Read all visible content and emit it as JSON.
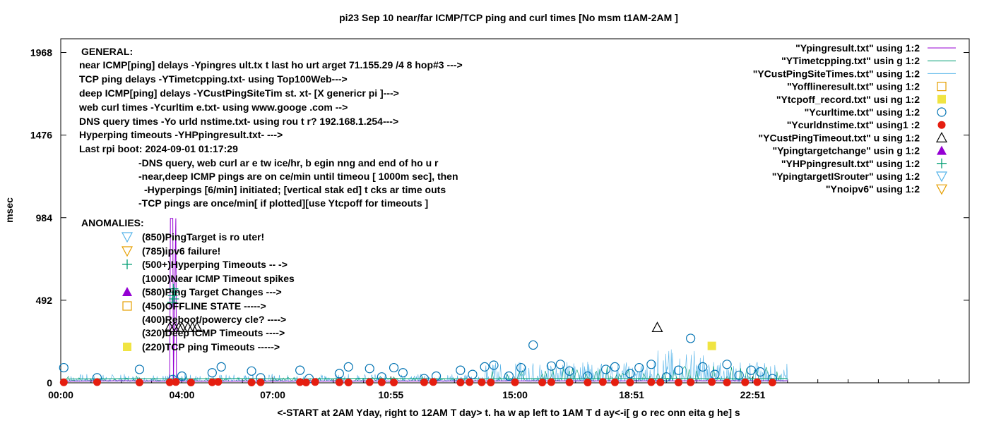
{
  "chart_data": {
    "type": "scatter",
    "title": "pi23 Sep 10  near/far ICMP/TCP ping and curl times [No msm t1AM-2AM ]",
    "xlabel": "<-START at 2AM Yday, right to 12AM T day> t. ha w ap left to 1AM T d ay<-i[ g o rec onn eita g he] s",
    "ylabel": "msec",
    "y_ticks": [
      "1968",
      "1476",
      "984",
      "492",
      "0"
    ],
    "y_tick_values": [
      1968,
      1476,
      984,
      492,
      0
    ],
    "ylim": [
      0,
      2050
    ],
    "x_ticks": [
      "00:00",
      "04:00",
      "07:00",
      "10:55",
      "15:00",
      "18:51",
      "22:51"
    ],
    "xlim_hours": [
      0,
      30
    ],
    "grid": false,
    "legend_position": "top-right",
    "legend": [
      {
        "label": "\"Ypingresult.txt\" using 1:2",
        "symbol": "line",
        "color": "#9400d3"
      },
      {
        "label": "\"YTimetcpping.txt\" usin g 1:2",
        "symbol": "line",
        "color": "#009e73"
      },
      {
        "label": "\"YCustPingSiteTimes.txt\"  using 1:2",
        "symbol": "line",
        "color": "#56b4e9"
      },
      {
        "label": "\"Yofflineresult.txt\" using 1:2",
        "symbol": "open-square",
        "color": "#e69f00"
      },
      {
        "label": "\"Ytcpoff_record.txt\" usi ng 1:2",
        "symbol": "filled-square",
        "color": "#f0e442"
      },
      {
        "label": "\"Ycurltime.txt\" using 1:2",
        "symbol": "open-circle",
        "color": "#0072b2"
      },
      {
        "label": "\"Ycurldnstime.txt\" using1 :2",
        "symbol": "filled-circle",
        "color": "#e51e10"
      },
      {
        "label": "\"YCustPingTimeout.txt\" u sing 1:2",
        "symbol": "open-triangle",
        "color": "#000000"
      },
      {
        "label": "\"Ypingtargetchange\" usin g 1:2",
        "symbol": "filled-triangle",
        "color": "#9400d3"
      },
      {
        "label": "\"YHPpingresult.txt\" using 1:2",
        "symbol": "plus",
        "color": "#009e73"
      },
      {
        "label": "\"YpingtargetISrouter\"  using 1:2",
        "symbol": "open-triangle-down",
        "color": "#56b4e9"
      },
      {
        "label": "\"Ynoipv6\" using 1:2",
        "symbol": "open-triangle-down",
        "color": "#e69f00"
      }
    ],
    "general_notes": [
      "GENERAL:",
      "near ICMP[ping] delays -Ypingres ult.tx t last ho urt arget 71.155.29 /4 8 hop#3 --->",
      "TCP ping delays -YTimetcpping.txt- using Top100Web--->",
      "deep ICMP[ping] delays -YCustPingSiteTim  st. xt- [X genericr pi ]--->",
      "web curl times -Ycurltim e.txt- using www.googe  .com -->",
      "DNS query times -Yo urld nstime.txt- using rou t r? 192.168.1.254--->",
      "Hyperping timeouts -YHPpingresult.txt- --->",
      "Last rpi boot: 2024-09-01 01:17:29",
      "-DNS query, web curl ar e tw ice/hr, b egin nng and end of  ho u r",
      "-near,deep ICMP pings  are on ce/min until timeou [ 1000m sec], then",
      "-Hyperpings [6/min] initiated; [vertical stak  ed] t cks  ar  time outs",
      "-TCP pings are once/min[ if plotted][use Ytcpoff for timeouts ]"
    ],
    "anomalies_title": "ANOMALIES:",
    "anomalies": [
      {
        "symbol": "open-triangle-down",
        "color": "#56b4e9",
        "text": "(850)PingTarget is ro uter!"
      },
      {
        "symbol": "open-triangle-down",
        "color": "#e69f00",
        "text": "(785)ipv6 failure!"
      },
      {
        "symbol": "plus",
        "color": "#009e73",
        "text": "(500+)Hyperping Timeouts -- ->"
      },
      {
        "symbol": "none",
        "color": "#000000",
        "text": "(1000)Near ICMP Timeout spikes"
      },
      {
        "symbol": "filled-triangle",
        "color": "#9400d3",
        "text": "(580)Ping Target Changes --->"
      },
      {
        "symbol": "open-square",
        "color": "#e69f00",
        "text": "(450)OFFLINE STATE ----->"
      },
      {
        "symbol": "none",
        "color": "#000000",
        "text": "(400)Reboot/powercy cle? ---->"
      },
      {
        "symbol": "none",
        "color": "#000000",
        "text": "(320)Deep ICMP Timeouts ---->"
      },
      {
        "symbol": "filled-square",
        "color": "#f0e442",
        "text": "(220)TCP ping Timeouts ----->"
      }
    ],
    "series": [
      {
        "name": "\"Ycurltime.txt\" using 1:2",
        "symbol": "open-circle",
        "color": "#0072b2",
        "x": [
          0.1,
          1.2,
          2.6,
          3.7,
          4.0,
          5.0,
          5.3,
          6.3,
          6.6,
          7.9,
          8.2,
          9.2,
          9.5,
          10.2,
          10.6,
          11.0,
          11.3,
          12.0,
          12.4,
          13.2,
          13.6,
          14.0,
          14.3,
          14.8,
          15.2,
          15.6,
          16.2,
          16.5,
          16.8,
          17.4,
          18.0,
          18.3,
          18.8,
          19.1,
          19.5,
          20.0,
          20.4,
          20.8,
          21.2,
          21.6,
          22.0,
          22.4,
          22.8,
          23.1,
          23.5
        ],
        "y": [
          90,
          30,
          80,
          20,
          40,
          60,
          95,
          70,
          30,
          75,
          25,
          55,
          95,
          85,
          35,
          90,
          60,
          25,
          40,
          75,
          50,
          95,
          105,
          40,
          90,
          225,
          100,
          110,
          70,
          40,
          80,
          95,
          55,
          90,
          110,
          35,
          75,
          265,
          95,
          50,
          110,
          45,
          75,
          65,
          25
        ]
      },
      {
        "name": "\"Ycurldnstime.txt\" using1 :2",
        "symbol": "filled-circle",
        "color": "#e51e10",
        "x": [
          0.1,
          1.2,
          2.6,
          3.6,
          3.8,
          4.3,
          5.0,
          5.2,
          6.3,
          6.6,
          7.9,
          8.1,
          8.4,
          9.2,
          9.5,
          10.2,
          10.6,
          11.0,
          12.0,
          12.3,
          13.2,
          13.5,
          13.9,
          14.2,
          15.0,
          15.9,
          16.2,
          16.8,
          17.4,
          17.9,
          18.3,
          18.8,
          19.5,
          19.8,
          20.4,
          20.8,
          21.5,
          22.0,
          22.6,
          23.0,
          23.5
        ],
        "y": [
          3,
          4,
          2,
          3,
          5,
          2,
          3,
          6,
          2,
          3,
          4,
          2,
          5,
          3,
          2,
          4,
          3,
          2,
          3,
          5,
          2,
          4,
          3,
          2,
          3,
          2,
          4,
          3,
          2,
          5,
          3,
          2,
          4,
          3,
          2,
          3,
          5,
          2,
          3,
          4,
          2
        ]
      },
      {
        "name": "\"YCustPingTimeout.txt\" u sing 1:2",
        "symbol": "open-triangle",
        "color": "#000000",
        "x": [
          3.6,
          3.75,
          3.9,
          4.0,
          4.2,
          4.35,
          4.5,
          19.7
        ],
        "y": [
          330,
          330,
          330,
          330,
          330,
          330,
          330,
          330
        ]
      },
      {
        "name": "\"Ytcpoff_record.txt\" usi ng 1:2",
        "symbol": "filled-square",
        "color": "#f0e442",
        "x": [
          21.5
        ],
        "y": [
          220
        ]
      },
      {
        "name": "\"YHPpingresult.txt\" using 1:2",
        "symbol": "plus",
        "color": "#009e73",
        "x": [
          3.68,
          3.7,
          3.72,
          3.74,
          3.76
        ],
        "y": [
          480,
          520,
          560,
          500,
          540
        ]
      },
      {
        "name": "\"Ypingresult.txt\" using 1:2",
        "symbol": "line",
        "color": "#9400d3",
        "x": [
          0,
          2.0,
          3.6,
          3.62,
          3.7,
          3.72,
          3.8,
          3.82,
          24
        ],
        "y": [
          10,
          12,
          10,
          980,
          980,
          10,
          980,
          10,
          12
        ]
      },
      {
        "name": "\"YTimetcpping.txt\" usin g 1:2",
        "symbol": "line",
        "color": "#009e73",
        "x": [
          0,
          2,
          4,
          6,
          8,
          10,
          12,
          14,
          16,
          18,
          20,
          22,
          24
        ],
        "y": [
          22,
          25,
          24,
          26,
          23,
          27,
          25,
          24,
          26,
          25,
          27,
          24,
          26
        ]
      }
    ]
  }
}
